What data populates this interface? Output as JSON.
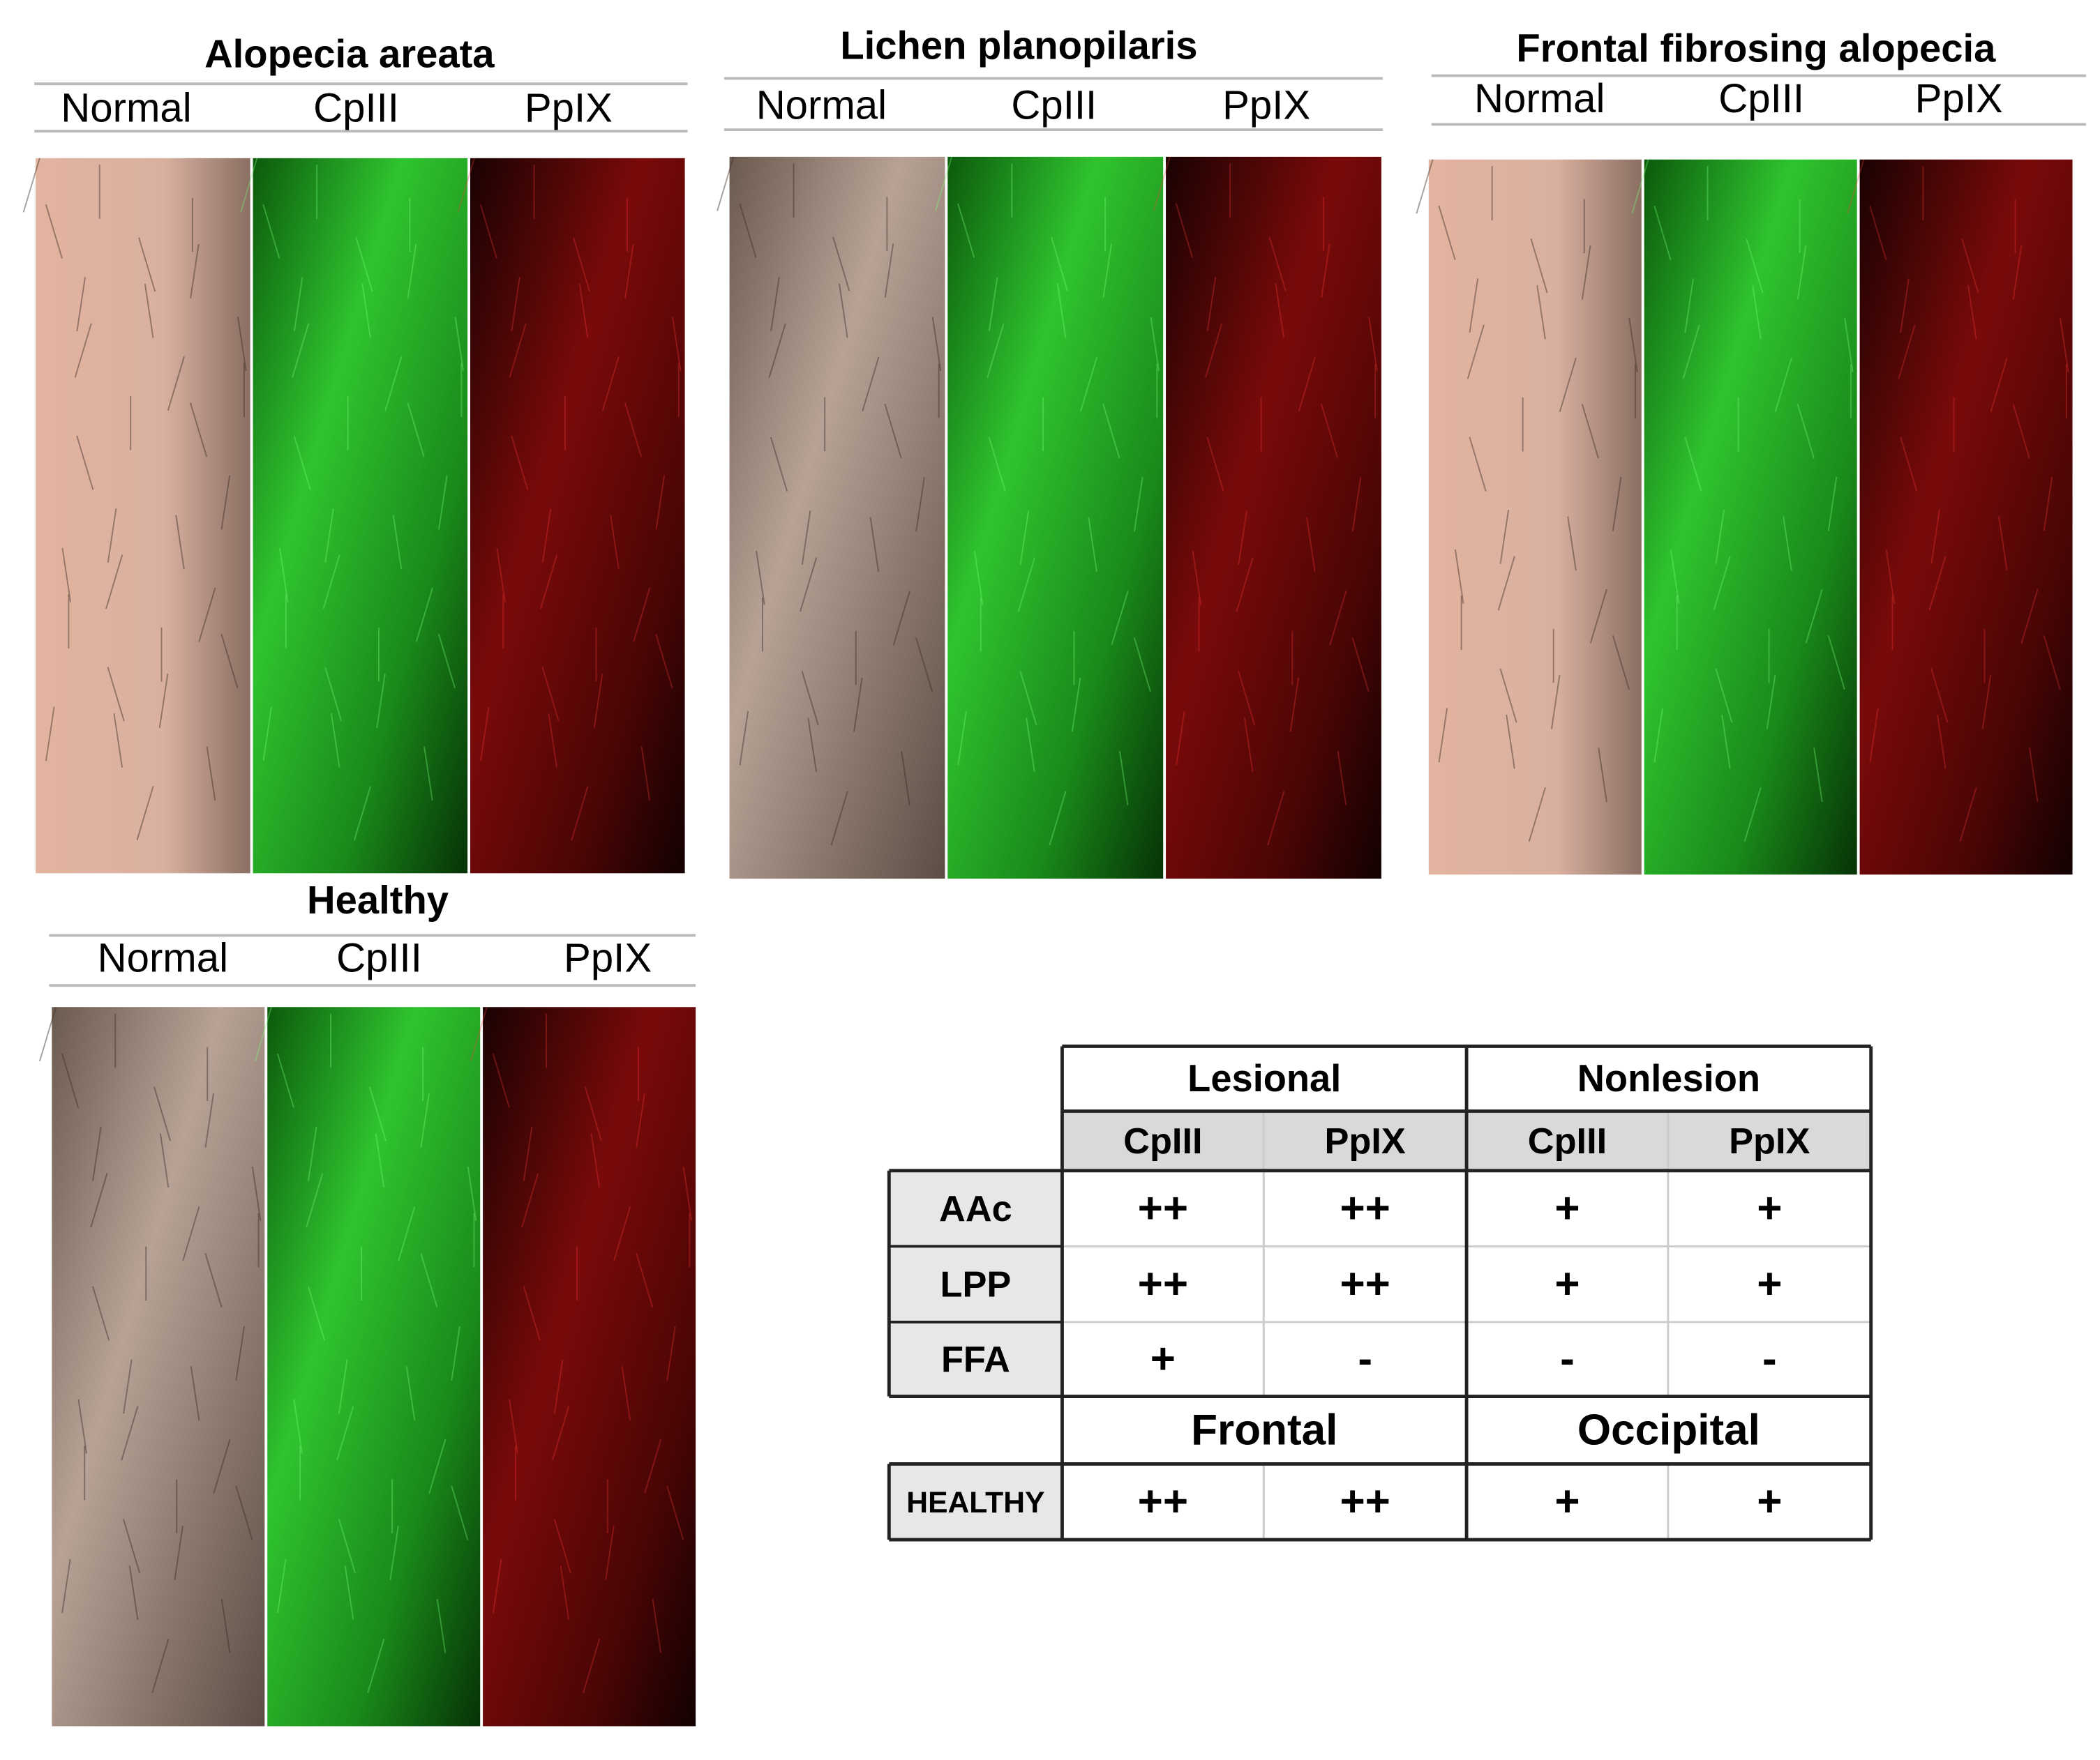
{
  "panels": [
    {
      "title": "Alopecia areata",
      "columns": [
        "Normal",
        "CpIII",
        "PpIX"
      ]
    },
    {
      "title": "Lichen planopilaris",
      "columns": [
        "Normal",
        "CpIII",
        "PpIX"
      ]
    },
    {
      "title": "Frontal fibrosing alopecia",
      "columns": [
        "Normal",
        "CpIII",
        "PpIX"
      ]
    },
    {
      "title": "Healthy",
      "columns": [
        "Normal",
        "CpIII",
        "PpIX"
      ]
    }
  ],
  "table": {
    "groups": [
      "Lesional",
      "Nonlesion"
    ],
    "subheaders": [
      "CpIII",
      "PpIX",
      "CpIII",
      "PpIX"
    ],
    "rows": [
      {
        "label": "AAc",
        "cells": [
          "++",
          "++",
          "+",
          "+"
        ]
      },
      {
        "label": "LPP",
        "cells": [
          "++",
          "++",
          "+",
          "+"
        ]
      },
      {
        "label": "FFA",
        "cells": [
          "+",
          "-",
          "-",
          "-"
        ]
      }
    ],
    "section_groups": [
      "Frontal",
      "Occipital"
    ],
    "healthy": {
      "label": "HEALTHY",
      "cells": [
        "++",
        "++",
        "+",
        "+"
      ]
    }
  }
}
